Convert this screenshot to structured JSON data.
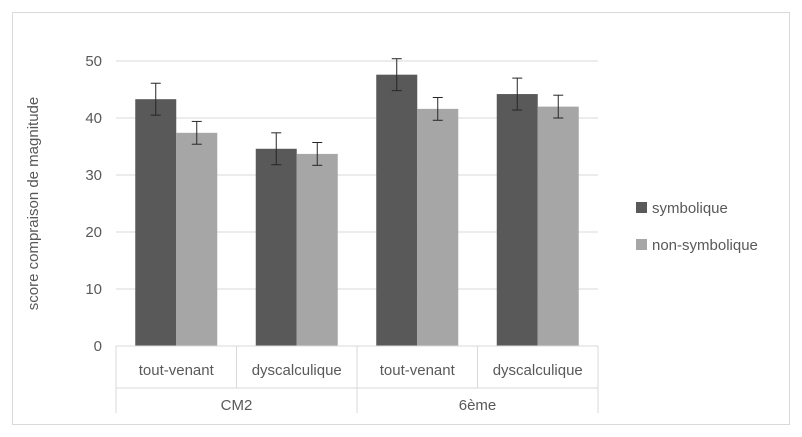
{
  "chart_data": {
    "type": "bar",
    "ylabel": "score compraison de magnitude",
    "ylim": [
      0,
      50
    ],
    "yticks": [
      0,
      10,
      20,
      30,
      40,
      50
    ],
    "grid": true,
    "legend_position": "right",
    "categories": [
      "tout-venant",
      "dyscalculique",
      "tout-venant",
      "dyscalculique"
    ],
    "groups": [
      {
        "label": "CM2",
        "categories": [
          "tout-venant",
          "dyscalculique"
        ]
      },
      {
        "label": "6ème",
        "categories": [
          "tout-venant",
          "dyscalculique"
        ]
      }
    ],
    "series": [
      {
        "name": "symbolique",
        "color": "#595959",
        "values": [
          43.3,
          34.6,
          47.6,
          44.2
        ],
        "errors": [
          2.8,
          2.8,
          2.8,
          2.8
        ]
      },
      {
        "name": "non-symbolique",
        "color": "#a6a6a6",
        "values": [
          37.4,
          33.7,
          41.6,
          42.0
        ],
        "errors": [
          2.0,
          2.0,
          2.0,
          2.0
        ]
      }
    ]
  }
}
